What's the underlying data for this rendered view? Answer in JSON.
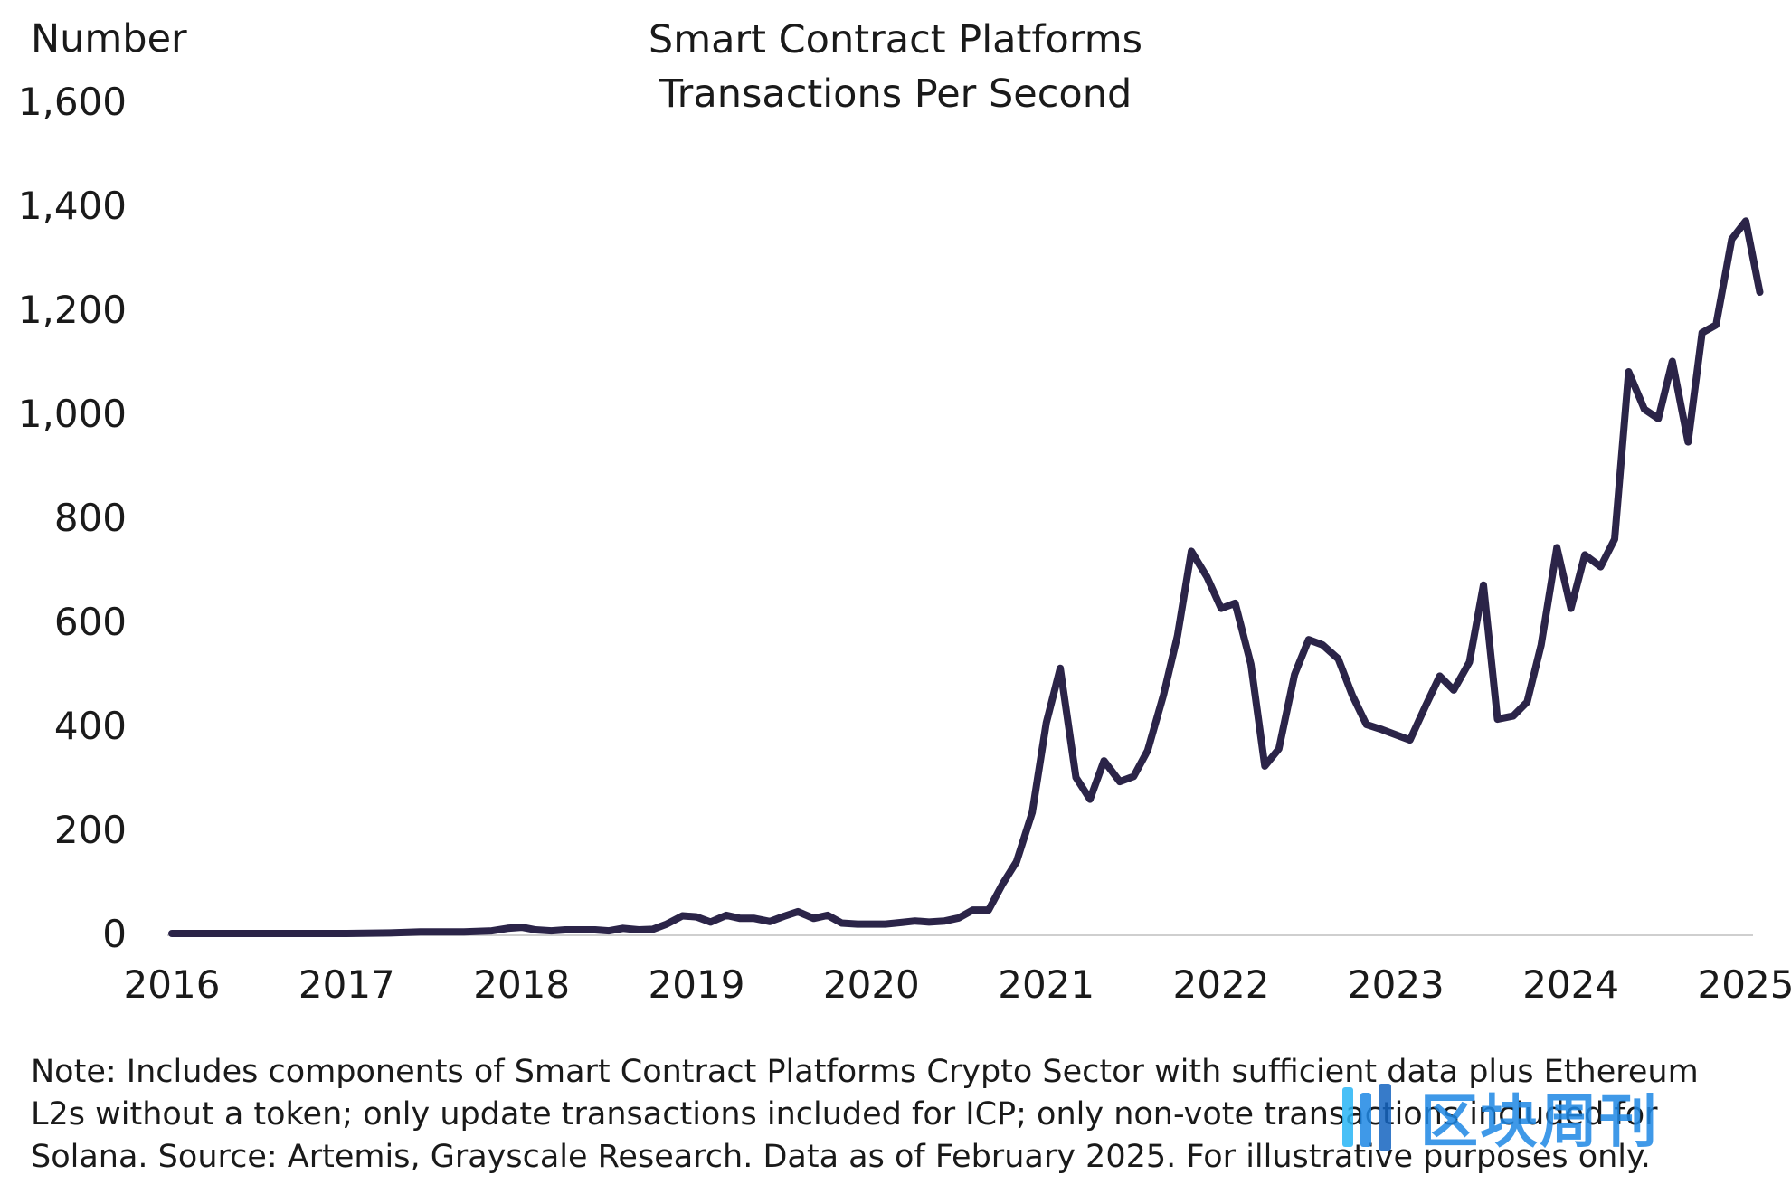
{
  "header": {
    "unit_label": "Number",
    "title_line1": "Smart Contract Platforms",
    "title_line2": "Transactions Per Second"
  },
  "note": {
    "line1": "Note: Includes components of Smart Contract Platforms Crypto Sector with sufficient data plus Ethereum",
    "line2": "L2s without a token; only update transactions included for ICP; only non-vote transactions included for",
    "line3": "Solana. Source: Artemis, Grayscale Research. Data as of February 2025. For illustrative purposes only."
  },
  "watermark": {
    "text": "区块周刊",
    "color": "#1e88e5"
  },
  "colors": {
    "line": "#2b2448",
    "axis": "#cfcfcf",
    "text": "#1a1a1a"
  },
  "chart_data": {
    "type": "line",
    "title": "Smart Contract Platforms Transactions Per Second",
    "ylabel": "Number",
    "xlabel": "",
    "ylim": [
      0,
      1600
    ],
    "xlim": [
      2016,
      2025
    ],
    "grid": false,
    "legend": "none",
    "yticks": [
      0,
      200,
      400,
      600,
      800,
      1000,
      1200,
      1400,
      1600
    ],
    "ytick_labels": [
      "0",
      "200",
      "400",
      "600",
      "800",
      "1,000",
      "1,200",
      "1,400",
      "1,600"
    ],
    "xticks": [
      2016,
      2017,
      2018,
      2019,
      2020,
      2021,
      2022,
      2023,
      2024,
      2025
    ],
    "xtick_labels": [
      "2016",
      "2017",
      "2018",
      "2019",
      "2020",
      "2021",
      "2022",
      "2023",
      "2024",
      "2025"
    ],
    "series": [
      {
        "values": [
          [
            2016.0,
            0
          ],
          [
            2016.25,
            0
          ],
          [
            2016.5,
            0
          ],
          [
            2016.75,
            0
          ],
          [
            2017.0,
            0
          ],
          [
            2017.25,
            1
          ],
          [
            2017.42,
            3
          ],
          [
            2017.67,
            3
          ],
          [
            2017.83,
            5
          ],
          [
            2017.92,
            10
          ],
          [
            2018.0,
            12
          ],
          [
            2018.08,
            7
          ],
          [
            2018.17,
            5
          ],
          [
            2018.25,
            7
          ],
          [
            2018.42,
            7
          ],
          [
            2018.5,
            5
          ],
          [
            2018.58,
            10
          ],
          [
            2018.67,
            7
          ],
          [
            2018.75,
            8
          ],
          [
            2018.83,
            18
          ],
          [
            2018.92,
            34
          ],
          [
            2019.0,
            32
          ],
          [
            2019.08,
            22
          ],
          [
            2019.17,
            35
          ],
          [
            2019.25,
            29
          ],
          [
            2019.33,
            29
          ],
          [
            2019.42,
            23
          ],
          [
            2019.5,
            33
          ],
          [
            2019.58,
            42
          ],
          [
            2019.67,
            29
          ],
          [
            2019.75,
            35
          ],
          [
            2019.83,
            20
          ],
          [
            2019.92,
            18
          ],
          [
            2020.0,
            18
          ],
          [
            2020.08,
            18
          ],
          [
            2020.17,
            21
          ],
          [
            2020.25,
            24
          ],
          [
            2020.33,
            22
          ],
          [
            2020.42,
            24
          ],
          [
            2020.5,
            30
          ],
          [
            2020.58,
            45
          ],
          [
            2020.67,
            45
          ],
          [
            2020.75,
            95
          ],
          [
            2020.83,
            138
          ],
          [
            2020.92,
            233
          ],
          [
            2021.0,
            405
          ],
          [
            2021.08,
            510
          ],
          [
            2021.17,
            300
          ],
          [
            2021.25,
            258
          ],
          [
            2021.33,
            332
          ],
          [
            2021.42,
            292
          ],
          [
            2021.5,
            302
          ],
          [
            2021.58,
            352
          ],
          [
            2021.67,
            458
          ],
          [
            2021.75,
            572
          ],
          [
            2021.83,
            735
          ],
          [
            2021.92,
            685
          ],
          [
            2022.0,
            625
          ],
          [
            2022.08,
            635
          ],
          [
            2022.17,
            518
          ],
          [
            2022.25,
            322
          ],
          [
            2022.33,
            355
          ],
          [
            2022.42,
            498
          ],
          [
            2022.5,
            565
          ],
          [
            2022.58,
            555
          ],
          [
            2022.67,
            528
          ],
          [
            2022.75,
            458
          ],
          [
            2022.83,
            402
          ],
          [
            2022.92,
            392
          ],
          [
            2023.0,
            382
          ],
          [
            2023.08,
            372
          ],
          [
            2023.17,
            438
          ],
          [
            2023.25,
            495
          ],
          [
            2023.33,
            468
          ],
          [
            2023.42,
            522
          ],
          [
            2023.5,
            670
          ],
          [
            2023.58,
            412
          ],
          [
            2023.67,
            418
          ],
          [
            2023.75,
            445
          ],
          [
            2023.83,
            555
          ],
          [
            2023.92,
            742
          ],
          [
            2024.0,
            625
          ],
          [
            2024.08,
            728
          ],
          [
            2024.17,
            705
          ],
          [
            2024.25,
            758
          ],
          [
            2024.33,
            1080
          ],
          [
            2024.42,
            1008
          ],
          [
            2024.5,
            990
          ],
          [
            2024.58,
            1100
          ],
          [
            2024.67,
            945
          ],
          [
            2024.75,
            1155
          ],
          [
            2024.83,
            1170
          ],
          [
            2024.92,
            1335
          ],
          [
            2025.0,
            1370
          ],
          [
            2025.08,
            1233
          ]
        ]
      }
    ]
  }
}
